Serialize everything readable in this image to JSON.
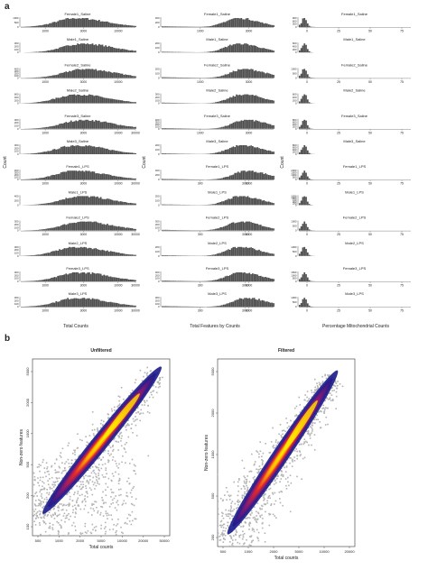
{
  "panel_a": {
    "letter": "a",
    "row_names": [
      "Female1_Saline",
      "Male1_Saline",
      "Female2_Saline",
      "Male2_Saline",
      "Female3_Saline",
      "Male3_Saline",
      "Female1_LPS",
      "Male1_LPS",
      "Female2_LPS",
      "Male2_LPS",
      "Female3_LPS",
      "Male3_LPS"
    ],
    "columns": [
      {
        "id": "total-counts",
        "xlabel": "Total Counts",
        "ylabel": "Count",
        "xticks": [
          [
            "1000",
            "3000",
            "10000"
          ],
          [],
          [
            "1000",
            "3000",
            "10000"
          ],
          [],
          [
            "1000",
            "3000",
            "10000",
            "30000"
          ],
          [],
          [
            "1000",
            "3000",
            "10000",
            "30000"
          ],
          [],
          [
            "1000",
            "3000",
            "10000",
            "30000"
          ],
          [],
          [
            "1000",
            "3000",
            "10000",
            "30000"
          ],
          [
            "1000",
            "3000",
            "10000",
            "30000"
          ]
        ],
        "yticks": [
          [
            "1000",
            "500",
            "0"
          ],
          [
            "300",
            "200",
            "100",
            "0"
          ],
          [
            "400",
            "300",
            "200",
            "100",
            "0"
          ],
          [
            "600",
            "400",
            "200",
            "0"
          ],
          [
            "300",
            "200",
            "100",
            "0"
          ],
          [
            "300",
            "200",
            "100",
            "0"
          ],
          [
            "400",
            "300",
            "200",
            "100",
            "0"
          ],
          [
            "400",
            "200",
            "0"
          ],
          [
            "300",
            "200",
            "100",
            "0"
          ],
          [
            "300",
            "200",
            "100",
            "0"
          ],
          [
            "300",
            "200",
            "100",
            "0"
          ],
          [
            "300",
            "200",
            "100",
            "0"
          ]
        ]
      },
      {
        "id": "features",
        "xlabel": "Total Features by Counts",
        "ylabel": "Count",
        "xticks": [
          [
            "1000",
            "3000"
          ],
          [],
          [
            "1000",
            "3000"
          ],
          [],
          [
            "1000",
            "3000"
          ],
          [],
          [
            "300",
            "1000",
            "3000"
          ],
          [],
          [
            "300",
            "1000",
            "3000"
          ],
          [],
          [
            "300",
            "1000",
            "3000"
          ],
          [
            "300",
            "1000",
            "3000"
          ]
        ],
        "yticks": [
          [
            "400",
            "200",
            "0"
          ],
          [
            "200",
            "100",
            "0"
          ],
          [
            "200",
            "100",
            "0"
          ],
          [
            "300",
            "200",
            "100",
            "0"
          ],
          [
            "400",
            "300",
            "200",
            "100",
            "0"
          ],
          [
            "200",
            "100",
            "0"
          ],
          [
            "400",
            "200",
            "0"
          ],
          [
            "200",
            "100",
            "0"
          ],
          [
            "300",
            "200",
            "100",
            "0"
          ],
          [
            "200",
            "100",
            "0"
          ],
          [
            "300",
            "200",
            "100",
            "0"
          ],
          [
            "300",
            "200",
            "100",
            "0"
          ]
        ]
      },
      {
        "id": "mito",
        "xlabel": "Percentage Mitochondrial Counts",
        "ylabel": "Count",
        "xticks": [
          [
            "0",
            "25",
            "50",
            "75"
          ],
          [],
          [
            "0",
            "25",
            "50",
            "75"
          ],
          [],
          [
            "0",
            "25",
            "50",
            "75"
          ],
          [],
          [
            "0",
            "25",
            "50",
            "75"
          ],
          [],
          [
            "0",
            "25",
            "50",
            "75"
          ],
          [],
          [
            "0",
            "25",
            "50",
            "75"
          ],
          [
            "0",
            "25",
            "50",
            "75"
          ]
        ],
        "yticks": [
          [
            "900",
            "600",
            "300",
            "0"
          ],
          [
            "600",
            "400",
            "200",
            "0"
          ],
          [
            "1000",
            "500",
            "0"
          ],
          [
            "600",
            "400",
            "200",
            "0"
          ],
          [
            "800",
            "600",
            "400",
            "200",
            "0"
          ],
          [
            "800",
            "600",
            "400",
            "200",
            "0"
          ],
          [
            "2000",
            "1500",
            "1000",
            "500",
            "0"
          ],
          [
            "1250",
            "1000",
            "750",
            "500",
            "250",
            "0"
          ],
          [
            "1000",
            "500",
            "0"
          ],
          [
            "1000",
            "500",
            "0"
          ],
          [
            "1500",
            "1000",
            "500",
            "0"
          ],
          [
            "1000",
            "500",
            "0"
          ]
        ]
      }
    ]
  },
  "panel_b": {
    "letter": "b",
    "plots": [
      {
        "id": "unfiltered",
        "title": "Unfiltered",
        "xlabel": "Total counts",
        "ylabel": "Non-zero features",
        "xticks": [
          "500",
          "1000",
          "2000",
          "5000",
          "10000",
          "20000",
          "50000"
        ],
        "yticks": [
          "5000",
          "2000",
          "1000",
          "500",
          "200",
          "100"
        ]
      },
      {
        "id": "filtered",
        "title": "Filtered",
        "xlabel": "Total counts",
        "ylabel": "Non-zero features",
        "xticks": [
          "500",
          "1000",
          "2000",
          "5000",
          "10000",
          "20000"
        ],
        "yticks": [
          "5000",
          "2000",
          "1000",
          "500",
          "200"
        ]
      }
    ]
  },
  "colors": {
    "histogram_fill": "#505050",
    "scatter_grey": "#b4b4b4",
    "density_low": "#1a1a8c",
    "density_mid": "#c0204a",
    "density_high": "#fff200"
  },
  "chart_data": [
    {
      "type": "histogram",
      "panel": "a",
      "rows": 12,
      "columns": 3,
      "column_x_scales": [
        "log",
        "log",
        "linear"
      ],
      "description_of_series": "Per-sample distributions (Total Counts, Total Features by Counts, Percentage Mitochondrial Counts)"
    },
    {
      "type": "scatter",
      "panel": "b",
      "title": "Unfiltered",
      "x_scale": "log",
      "y_scale": "log",
      "xlabel": "Total counts",
      "ylabel": "Non-zero features",
      "xlim": [
        500,
        60000
      ],
      "ylim": [
        90,
        9000
      ]
    },
    {
      "type": "scatter",
      "panel": "b",
      "title": "Filtered",
      "x_scale": "log",
      "y_scale": "log",
      "xlabel": "Total counts",
      "ylabel": "Non-zero features",
      "xlim": [
        500,
        25000
      ],
      "ylim": [
        180,
        7000
      ]
    }
  ]
}
